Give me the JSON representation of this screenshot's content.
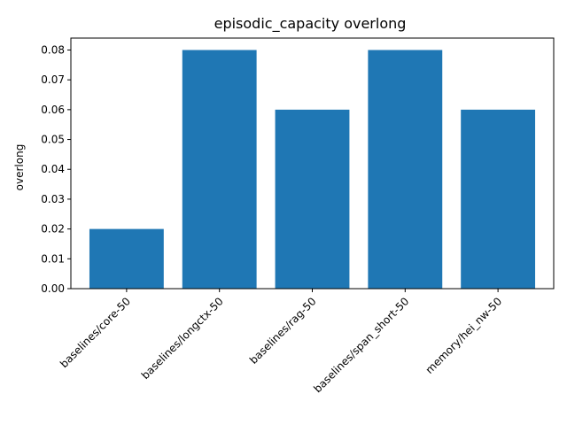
{
  "chart_data": {
    "type": "bar",
    "title": "episodic_capacity overlong",
    "xlabel": "",
    "ylabel": "overlong",
    "categories": [
      "baselines/core-50",
      "baselines/longctx-50",
      "baselines/rag-50",
      "baselines/span_short-50",
      "memory/hei_nw-50"
    ],
    "values": [
      0.02,
      0.08,
      0.06,
      0.08,
      0.06
    ],
    "ylim": [
      0,
      0.084
    ],
    "yticks": [
      "0.00",
      "0.01",
      "0.02",
      "0.03",
      "0.04",
      "0.05",
      "0.06",
      "0.07",
      "0.08"
    ],
    "bar_color": "#1f77b4",
    "grid": false,
    "legend": "none"
  }
}
